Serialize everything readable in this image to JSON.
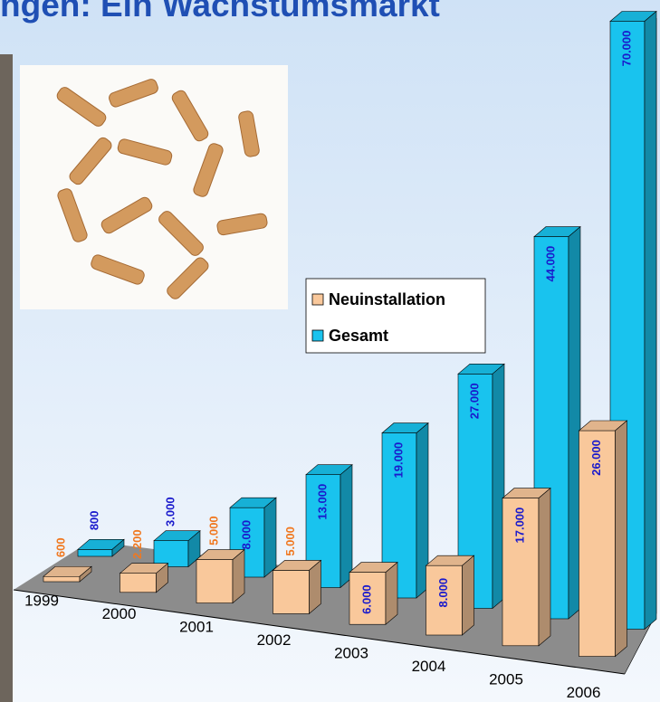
{
  "chart_data": {
    "type": "bar3d",
    "title": "ngen: Ein Wachstumsmarkt",
    "categories": [
      "1999",
      "2000",
      "2001",
      "2002",
      "2003",
      "2004",
      "2005",
      "2006"
    ],
    "series": [
      {
        "name": "Neuinstallation",
        "color": "#f9c89b",
        "values": [
          600,
          2200,
          5000,
          5000,
          6000,
          8000,
          17000,
          26000
        ],
        "value_labels": [
          "600",
          "2.200",
          "5.000",
          "5.000",
          "6.000",
          "8.000",
          "17.000",
          "26.000"
        ]
      },
      {
        "name": "Gesamt",
        "color": "#19c3ee",
        "values": [
          800,
          3000,
          8000,
          13000,
          19000,
          27000,
          44000,
          70000
        ],
        "value_labels": [
          "800",
          "3.000",
          "8.000",
          "13.000",
          "19.000",
          "27.000",
          "44.000",
          "70.000"
        ]
      }
    ],
    "ylim": [
      0,
      70000
    ]
  }
}
